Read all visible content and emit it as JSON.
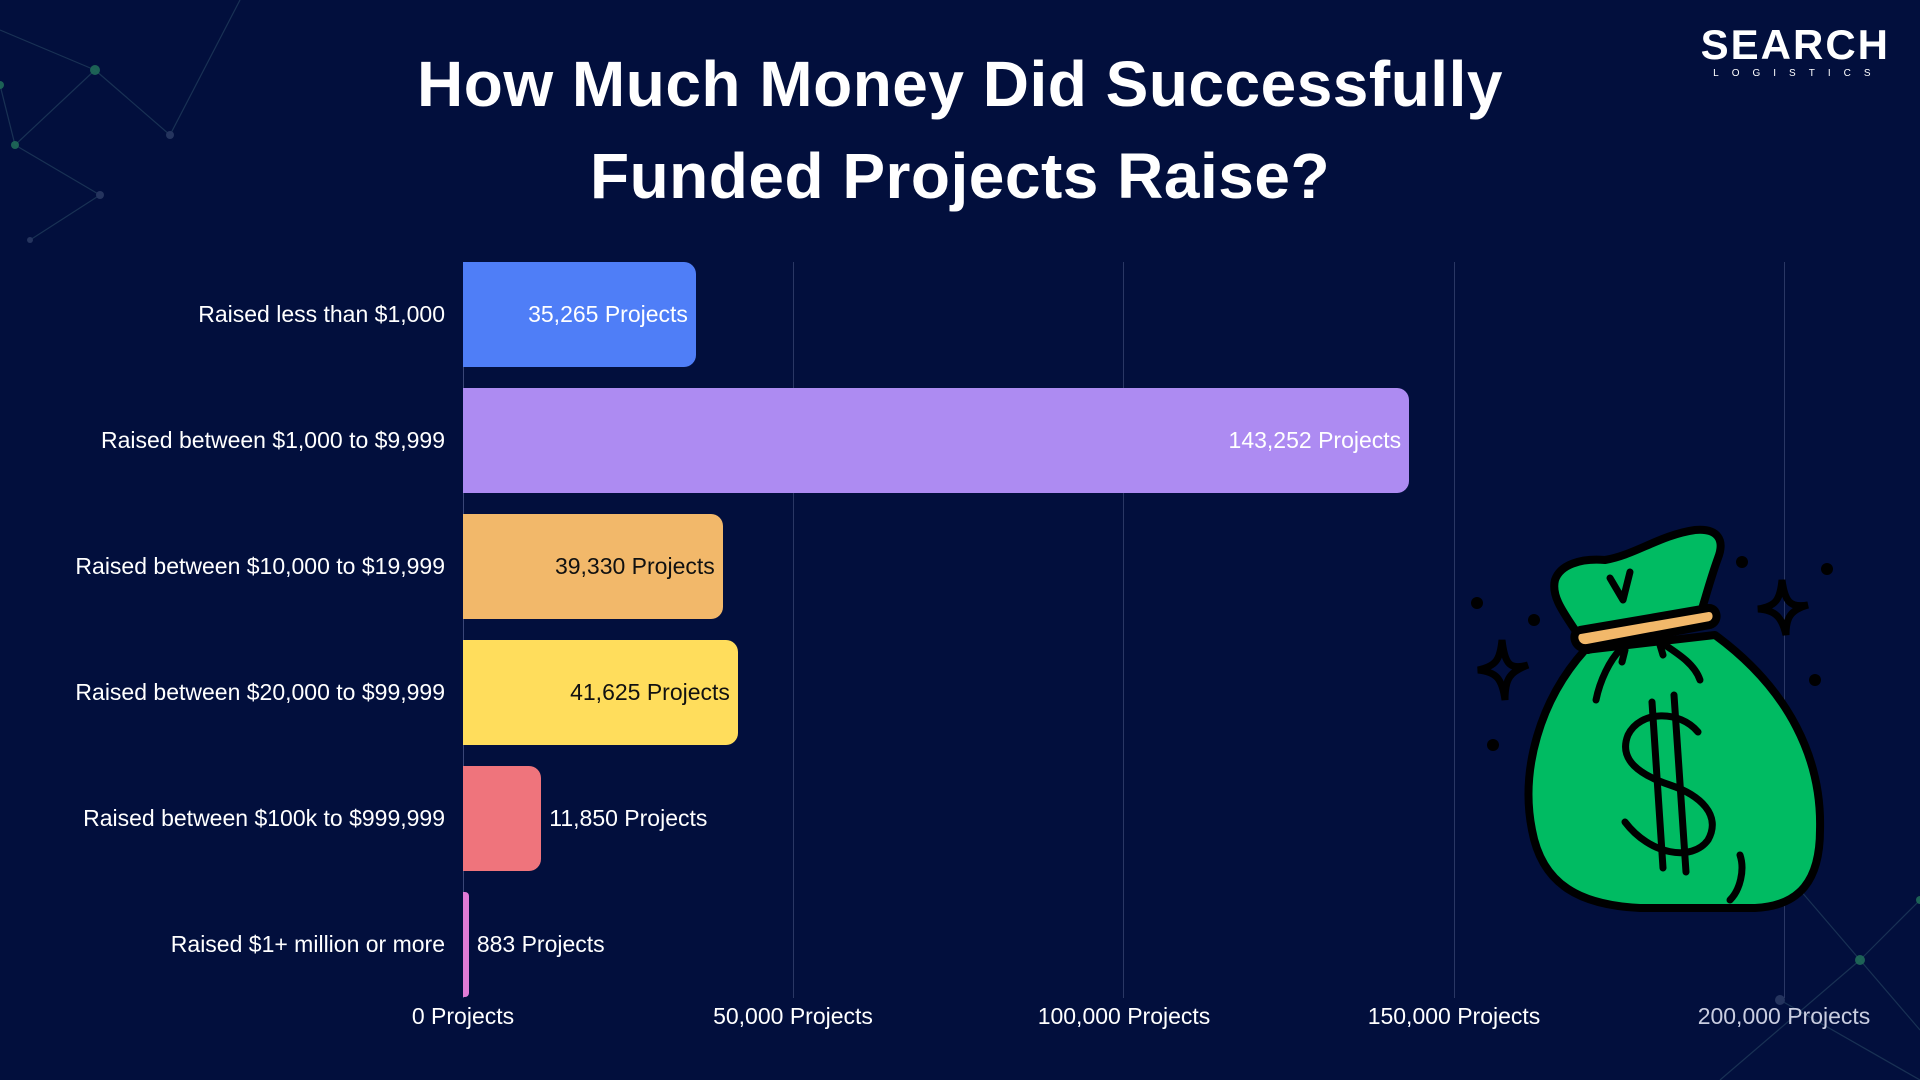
{
  "header": {
    "title_line1": "How Much Money Did Successfully",
    "title_line2": "Funded Projects Raise?"
  },
  "logo": {
    "main": "SEARCH",
    "sub": "LOGISTICS"
  },
  "colors": {
    "background": "#020f3d",
    "bar_1": "#4f7ef7",
    "bar_2": "#ad8bf2",
    "bar_3": "#f2b86a",
    "bar_4": "#ffdd5c",
    "bar_5": "#ef747c",
    "bar_6": "#e07bd6",
    "money_bag_green": "#00bb62",
    "money_bag_tie": "#f2b86a"
  },
  "chart_data": {
    "type": "bar",
    "orientation": "horizontal",
    "title": "How Much Money Did Successfully Funded Projects Raise?",
    "xlabel": "",
    "ylabel": "",
    "xlim": [
      0,
      200000
    ],
    "grid": true,
    "legend": "none",
    "categories": [
      "Raised less than $1,000",
      "Raised between $1,000 to $9,999",
      "Raised between $10,000 to $19,999",
      "Raised between $20,000 to $99,999",
      "Raised between $100k to $999,999",
      "Raised $1+ million or more"
    ],
    "values": [
      35265,
      143252,
      39330,
      41625,
      11850,
      883
    ],
    "data_labels": [
      "35,265 Projects",
      "143,252 Projects",
      "39,330 Projects",
      "41,625 Projects",
      "11,850 Projects",
      "883 Projects"
    ],
    "x_ticks": [
      0,
      50000,
      100000,
      150000,
      200000
    ],
    "x_tick_labels": [
      "0 Projects",
      "50,000 Projects",
      "100,000 Projects",
      "150,000 Projects",
      "200,000 Projects"
    ]
  },
  "illustration": {
    "icon": "money-bag-icon"
  }
}
